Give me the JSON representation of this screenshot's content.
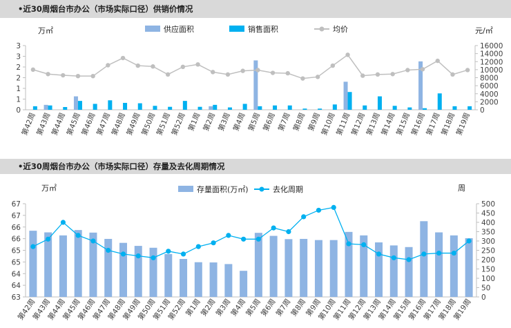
{
  "chart_data": [
    {
      "type": "bar",
      "title": "•近30周烟台市办公（市场实际口径）供销价情况",
      "left_unit": "万㎡",
      "right_unit": "元/㎡",
      "categories": [
        "第42周",
        "第43周",
        "第44周",
        "第45周",
        "第46周",
        "第47周",
        "第48周",
        "第49周",
        "第50周",
        "第51周",
        "第52周",
        "第1周",
        "第2周",
        "第3周",
        "第4周",
        "第5周",
        "第6周",
        "第7周",
        "第8周",
        "第9周",
        "第10周",
        "第11周",
        "第12周",
        "第13周",
        "第14周",
        "第15周",
        "第16周",
        "第17周",
        "第18周",
        "第19周"
      ],
      "y_left_ticks": [
        "0",
        "1",
        "1",
        "2",
        "2",
        "3",
        "3"
      ],
      "y_left_range": [
        0,
        3.25
      ],
      "y_right_ticks": [
        "0",
        "2000",
        "4000",
        "6000",
        "8000",
        "10000",
        "12000",
        "14000",
        "16000"
      ],
      "y_right_range": [
        0,
        16000
      ],
      "legend": [
        "供应面积",
        "销售面积",
        "均价"
      ],
      "series": [
        {
          "name": "供应面积",
          "axis": "left",
          "type": "bar",
          "color": "#8eb4e3",
          "values": [
            0,
            0.25,
            0,
            0.68,
            0,
            0,
            0,
            0,
            0,
            0,
            0,
            0,
            0.18,
            0,
            0,
            2.5,
            0,
            0,
            0,
            0,
            0,
            1.42,
            0,
            0,
            0,
            0,
            2.45,
            0,
            0,
            0
          ]
        },
        {
          "name": "销售面积",
          "axis": "left",
          "type": "bar",
          "color": "#00b0f0",
          "values": [
            0.18,
            0.22,
            0.14,
            0.45,
            0.3,
            0.48,
            0.35,
            0.33,
            0.2,
            0.15,
            0.45,
            0.15,
            0.25,
            0.12,
            0.3,
            0.18,
            0.22,
            0.22,
            0.06,
            0.06,
            0.27,
            0.9,
            0.22,
            0.68,
            0.2,
            0.12,
            0.08,
            0.83,
            0.18,
            0.18
          ]
        },
        {
          "name": "均价",
          "axis": "right",
          "type": "line",
          "color": "#bfbfbf",
          "values": [
            10000,
            8900,
            8600,
            8400,
            8400,
            11100,
            12900,
            11000,
            10800,
            8800,
            10700,
            11300,
            9400,
            8800,
            9700,
            9900,
            9200,
            9100,
            7800,
            8200,
            11000,
            13700,
            8500,
            8800,
            8900,
            9900,
            10100,
            12200,
            8800,
            9900
          ]
        }
      ]
    },
    {
      "type": "bar",
      "title": "•近30周烟台市办公（市场实际口径）存量及去化周期情况",
      "left_unit": "万㎡",
      "right_unit": "周",
      "categories": [
        "第42周",
        "第43周",
        "第44周",
        "第45周",
        "第46周",
        "第47周",
        "第48周",
        "第49周",
        "第50周",
        "第51周",
        "第52周",
        "第1周",
        "第2周",
        "第3周",
        "第4周",
        "第5周",
        "第6周",
        "第7周",
        "第8周",
        "第9周",
        "第10周",
        "第11周",
        "第12周",
        "第13周",
        "第14周",
        "第15周",
        "第16周",
        "第17周",
        "第18周",
        "第19周"
      ],
      "y_left_ticks": [
        "63",
        "64",
        "64",
        "65",
        "65",
        "66",
        "66",
        "67",
        "67"
      ],
      "y_left_range": [
        63,
        67
      ],
      "y_right_ticks": [
        "0",
        "50",
        "100",
        "150",
        "200",
        "250",
        "300",
        "350",
        "400",
        "450",
        "500"
      ],
      "y_right_range": [
        0,
        500
      ],
      "legend": [
        "存量面积(万㎡)",
        "去化周期"
      ],
      "series": [
        {
          "name": "存量面积(万㎡)",
          "axis": "left",
          "type": "bar",
          "color": "#8eb4e3",
          "values": [
            65.84,
            65.77,
            65.64,
            65.87,
            65.76,
            65.49,
            65.32,
            65.19,
            65.11,
            64.84,
            64.63,
            64.49,
            64.48,
            64.41,
            64.12,
            65.75,
            65.62,
            65.48,
            65.49,
            65.44,
            65.44,
            65.79,
            65.64,
            65.34,
            65.21,
            65.14,
            66.25,
            65.77,
            65.64,
            65.52
          ]
        },
        {
          "name": "去化周期",
          "axis": "right",
          "type": "line",
          "color": "#00b0f0",
          "values": [
            270,
            310,
            400,
            330,
            300,
            250,
            230,
            220,
            210,
            245,
            230,
            270,
            290,
            330,
            310,
            310,
            370,
            350,
            430,
            465,
            480,
            285,
            280,
            230,
            210,
            200,
            230,
            235,
            235,
            300
          ]
        }
      ]
    }
  ]
}
